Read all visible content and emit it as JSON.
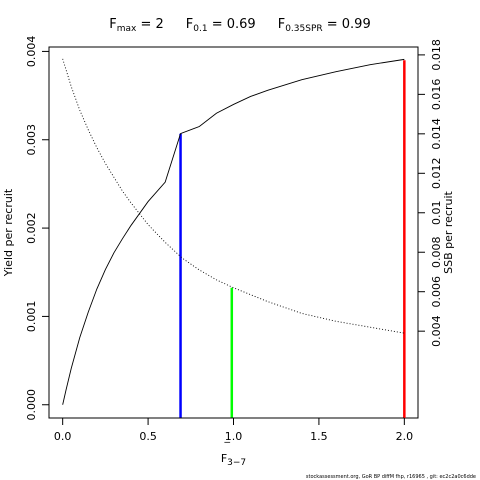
{
  "chart_data": {
    "type": "line",
    "title_parts": [
      {
        "main": "F",
        "sub": "max",
        "rest": " = 2"
      },
      {
        "main": "F",
        "sub": "0.1",
        "rest": " = 0.69"
      },
      {
        "main": "F",
        "sub": "0.35SPR",
        "rest": " = 0.99"
      }
    ],
    "xlabel_main": "F",
    "xlabel_sub": "3−7",
    "ylabel_left": "Yield per recruit",
    "ylabel_right": "SSB per recruit",
    "xlim": [
      -0.08,
      2.08
    ],
    "ylim_left": [
      -0.00015,
      0.00405
    ],
    "ylim_right": [
      -0.0004,
      0.0184
    ],
    "x_ticks": [
      0,
      0.5,
      1,
      1.5,
      2
    ],
    "x_tick_labels": [
      "0.0",
      "0.5",
      "1.0",
      "1.5",
      "2.0"
    ],
    "y_left_ticks": [
      0,
      0.001,
      0.002,
      0.003,
      0.004
    ],
    "y_left_tick_labels": [
      "0.000",
      "0.001",
      "0.002",
      "0.003",
      "0.004"
    ],
    "y_right_ticks": [
      0.004,
      0.006,
      0.008,
      0.01,
      0.012,
      0.014,
      0.016,
      0.018
    ],
    "y_right_tick_labels": [
      "0.004",
      "0.006",
      "0.008",
      "0.01",
      "0.012",
      "0.014",
      "0.016",
      "0.018"
    ],
    "series": [
      {
        "axis": "left",
        "style": "solid",
        "color": "#000000",
        "x": [
          0,
          0.02,
          0.05,
          0.1,
          0.15,
          0.2,
          0.25,
          0.3,
          0.35,
          0.4,
          0.5,
          0.6,
          0.69,
          0.8,
          0.9,
          1.0,
          1.1,
          1.2,
          1.4,
          1.6,
          1.8,
          2.0
        ],
        "values": [
          0.0,
          0.00017,
          0.00041,
          0.00076,
          0.00105,
          0.00131,
          0.00153,
          0.00172,
          0.00188,
          0.00203,
          0.0023,
          0.00252,
          0.00307,
          0.00315,
          0.0033,
          0.0034,
          0.00349,
          0.00356,
          0.00368,
          0.00377,
          0.00385,
          0.00391
        ]
      },
      {
        "axis": "right",
        "style": "dotted",
        "color": "#000000",
        "x": [
          0,
          0.05,
          0.1,
          0.15,
          0.2,
          0.25,
          0.3,
          0.35,
          0.4,
          0.5,
          0.6,
          0.7,
          0.8,
          0.9,
          1.0,
          1.2,
          1.4,
          1.6,
          1.8,
          2.0
        ],
        "values": [
          0.0178,
          0.0164,
          0.0152,
          0.0142,
          0.0133,
          0.0125,
          0.0118,
          0.0111,
          0.0105,
          0.0094,
          0.0085,
          0.0077,
          0.0071,
          0.0066,
          0.0062,
          0.0055,
          0.0049,
          0.0045,
          0.0042,
          0.0039
        ]
      }
    ],
    "reference_lines": [
      {
        "x": 0.69,
        "y_top": 0.003068,
        "axis": "left",
        "color": "#0000ff"
      },
      {
        "x": 0.99,
        "y_top": 0.0062,
        "axis": "right",
        "color": "#00ff00"
      },
      {
        "x": 2.0,
        "y_top": 0.0039,
        "axis": "left",
        "color": "#ff0000"
      }
    ],
    "footer": "stockassessment.org, GoR BP diffM fhp, r16965 , git: ec2c2a0c6dde"
  }
}
